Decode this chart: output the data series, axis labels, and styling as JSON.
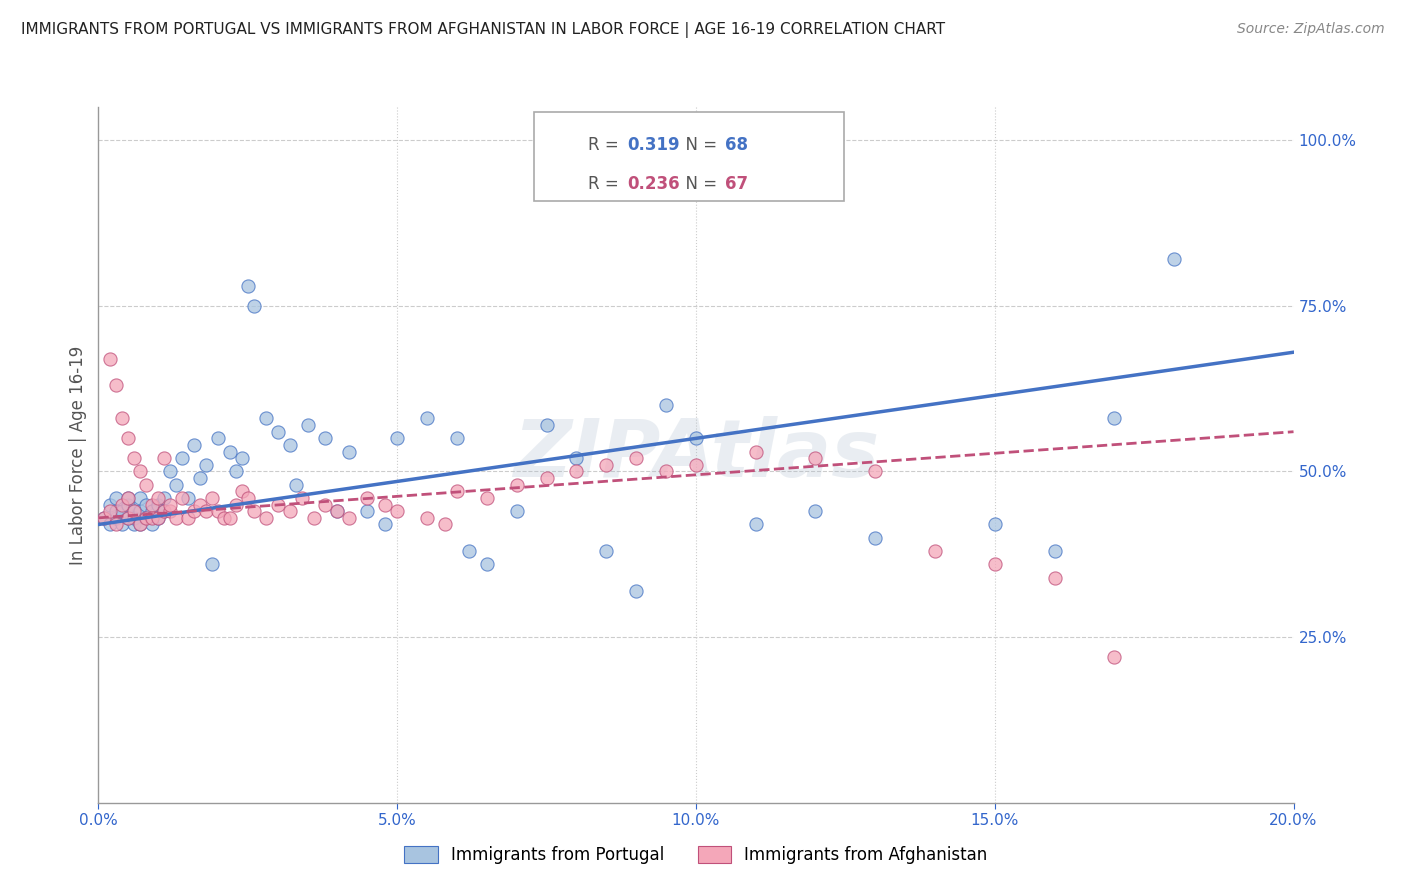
{
  "title": "IMMIGRANTS FROM PORTUGAL VS IMMIGRANTS FROM AFGHANISTAN IN LABOR FORCE | AGE 16-19 CORRELATION CHART",
  "source": "Source: ZipAtlas.com",
  "ylabel": "In Labor Force | Age 16-19",
  "legend_portugal": {
    "R": "0.319",
    "N": "68"
  },
  "legend_afghanistan": {
    "R": "0.236",
    "N": "67"
  },
  "color_portugal_fill": "#A8C4E0",
  "color_portugal_edge": "#4472C4",
  "color_afghanistan_fill": "#F4A7B9",
  "color_afghanistan_edge": "#C0507A",
  "color_line_portugal": "#4472C4",
  "color_line_afghanistan": "#C0507A",
  "watermark": "ZIPAtlas",
  "portugal_x": [
    0.001,
    0.002,
    0.002,
    0.003,
    0.003,
    0.003,
    0.004,
    0.004,
    0.005,
    0.005,
    0.005,
    0.006,
    0.006,
    0.006,
    0.007,
    0.007,
    0.007,
    0.008,
    0.008,
    0.009,
    0.009,
    0.01,
    0.01,
    0.011,
    0.011,
    0.012,
    0.013,
    0.014,
    0.015,
    0.016,
    0.017,
    0.018,
    0.019,
    0.02,
    0.022,
    0.023,
    0.024,
    0.025,
    0.026,
    0.028,
    0.03,
    0.032,
    0.033,
    0.035,
    0.038,
    0.04,
    0.042,
    0.045,
    0.048,
    0.05,
    0.055,
    0.06,
    0.062,
    0.065,
    0.07,
    0.075,
    0.08,
    0.085,
    0.09,
    0.095,
    0.1,
    0.11,
    0.12,
    0.13,
    0.15,
    0.16,
    0.17,
    0.18
  ],
  "portugal_y": [
    0.43,
    0.45,
    0.42,
    0.43,
    0.44,
    0.46,
    0.42,
    0.44,
    0.43,
    0.45,
    0.46,
    0.42,
    0.44,
    0.43,
    0.42,
    0.44,
    0.46,
    0.43,
    0.45,
    0.42,
    0.44,
    0.43,
    0.45,
    0.44,
    0.46,
    0.5,
    0.48,
    0.52,
    0.46,
    0.54,
    0.49,
    0.51,
    0.36,
    0.55,
    0.53,
    0.5,
    0.52,
    0.78,
    0.75,
    0.58,
    0.56,
    0.54,
    0.48,
    0.57,
    0.55,
    0.44,
    0.53,
    0.44,
    0.42,
    0.55,
    0.58,
    0.55,
    0.38,
    0.36,
    0.44,
    0.57,
    0.52,
    0.38,
    0.32,
    0.6,
    0.55,
    0.42,
    0.44,
    0.4,
    0.42,
    0.38,
    0.58,
    0.82
  ],
  "afghanistan_x": [
    0.001,
    0.002,
    0.002,
    0.003,
    0.003,
    0.004,
    0.004,
    0.005,
    0.005,
    0.005,
    0.006,
    0.006,
    0.007,
    0.007,
    0.008,
    0.008,
    0.009,
    0.009,
    0.01,
    0.01,
    0.011,
    0.011,
    0.012,
    0.012,
    0.013,
    0.014,
    0.015,
    0.016,
    0.017,
    0.018,
    0.019,
    0.02,
    0.021,
    0.022,
    0.023,
    0.024,
    0.025,
    0.026,
    0.028,
    0.03,
    0.032,
    0.034,
    0.036,
    0.038,
    0.04,
    0.042,
    0.045,
    0.048,
    0.05,
    0.055,
    0.058,
    0.06,
    0.065,
    0.07,
    0.075,
    0.08,
    0.085,
    0.09,
    0.095,
    0.1,
    0.11,
    0.12,
    0.13,
    0.14,
    0.15,
    0.16,
    0.17
  ],
  "afghanistan_y": [
    0.43,
    0.44,
    0.67,
    0.42,
    0.63,
    0.45,
    0.58,
    0.46,
    0.55,
    0.43,
    0.44,
    0.52,
    0.42,
    0.5,
    0.43,
    0.48,
    0.45,
    0.43,
    0.46,
    0.43,
    0.44,
    0.52,
    0.44,
    0.45,
    0.43,
    0.46,
    0.43,
    0.44,
    0.45,
    0.44,
    0.46,
    0.44,
    0.43,
    0.43,
    0.45,
    0.47,
    0.46,
    0.44,
    0.43,
    0.45,
    0.44,
    0.46,
    0.43,
    0.45,
    0.44,
    0.43,
    0.46,
    0.45,
    0.44,
    0.43,
    0.42,
    0.47,
    0.46,
    0.48,
    0.49,
    0.5,
    0.51,
    0.52,
    0.5,
    0.51,
    0.53,
    0.52,
    0.5,
    0.38,
    0.36,
    0.34,
    0.22
  ],
  "xlim": [
    0.0,
    0.2
  ],
  "ylim": [
    0.0,
    1.05
  ],
  "xticks": [
    0.0,
    0.05,
    0.1,
    0.15,
    0.2
  ],
  "yticks_right": [
    0.25,
    0.5,
    0.75,
    1.0
  ],
  "grid_color": "#CCCCCC",
  "background_color": "#FFFFFF",
  "port_line_x0": 0.0,
  "port_line_x1": 0.2,
  "port_line_y0": 0.42,
  "port_line_y1": 0.68,
  "afg_line_x0": 0.0,
  "afg_line_x1": 0.2,
  "afg_line_y0": 0.43,
  "afg_line_y1": 0.56
}
